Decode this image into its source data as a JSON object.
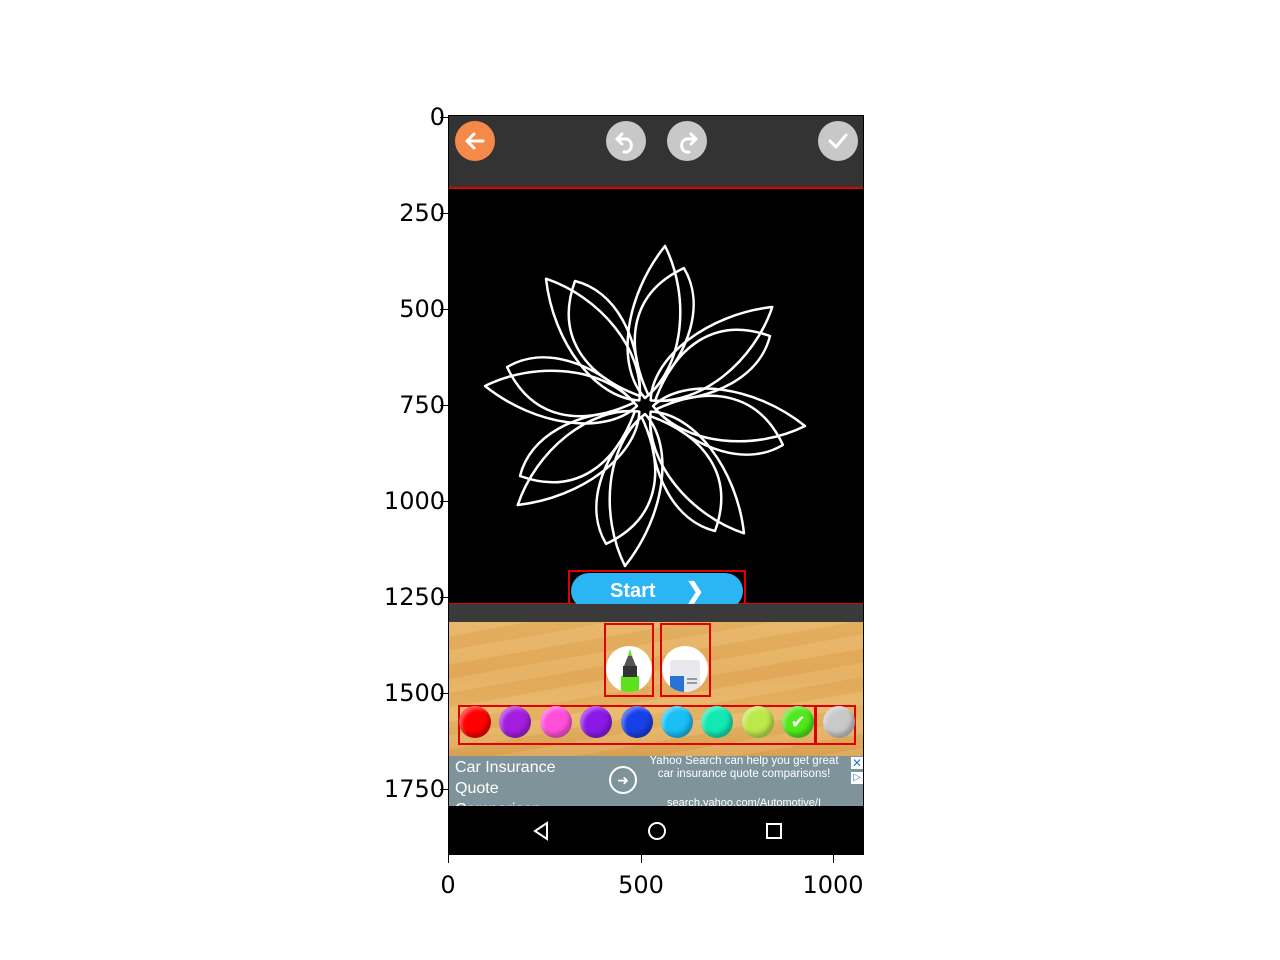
{
  "axes": {
    "y_ticks": [
      "0",
      "250",
      "500",
      "750",
      "1000",
      "1250",
      "1500",
      "1750"
    ],
    "x_ticks": [
      "0",
      "500",
      "1000"
    ]
  },
  "toolbar": {
    "back_icon": "arrow-left-icon",
    "undo_icon": "undo-icon",
    "redo_icon": "redo-icon",
    "done_icon": "checkmark-icon"
  },
  "canvas": {
    "artwork": "flower-outline"
  },
  "start_button": {
    "label": "Start",
    "icon": "chevron-right-icon"
  },
  "tools": [
    {
      "name": "marker",
      "icon": "marker-icon"
    },
    {
      "name": "eraser",
      "icon": "eraser-icon"
    }
  ],
  "palette": {
    "colors": [
      "#ff0000",
      "#a41ee0",
      "#ff4fd8",
      "#8a19e8",
      "#1740e8",
      "#19bff5",
      "#12e8b2",
      "#bde84a",
      "#4fe81a",
      "#c9c9c9"
    ],
    "selected_index": 8
  },
  "ad": {
    "title": "Car Insurance Quote Comparison",
    "description": "Yahoo Search can help you get great car insurance quote comparisons!",
    "url": "search.yahoo.com/Automotive/I",
    "close_glyph": "✕",
    "info_glyph": "▷"
  },
  "navbar": {
    "back_icon": "triangle-back-icon",
    "home_icon": "circle-home-icon",
    "recents_icon": "square-recents-icon"
  }
}
